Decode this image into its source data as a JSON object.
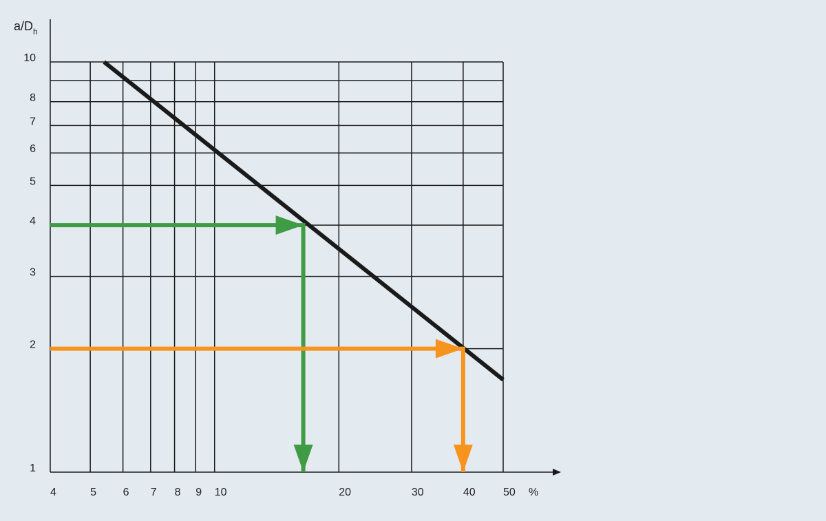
{
  "chart_data": {
    "type": "line",
    "ylabel": {
      "text": "a/D",
      "sub": "h"
    },
    "xunit": "%",
    "xscale": "log",
    "yscale": "log",
    "xlim": [
      4,
      50
    ],
    "ylim": [
      1,
      10
    ],
    "xticks": [
      4,
      5,
      6,
      7,
      8,
      9,
      10,
      20,
      30,
      40,
      50
    ],
    "yticks": [
      1,
      2,
      3,
      4,
      5,
      6,
      7,
      8,
      10
    ],
    "yminor": [
      9
    ],
    "grid": true,
    "series": [
      {
        "color": "#1a1a1a",
        "x": [
          5.4,
          50
        ],
        "values": [
          10,
          1.68
        ],
        "arrow": false
      },
      {
        "color": "#3f9c44",
        "x": [
          4,
          16.4,
          16.4
        ],
        "values": [
          4,
          4,
          1
        ],
        "arrow": true
      },
      {
        "color": "#f7941d",
        "x": [
          4,
          40,
          40
        ],
        "values": [
          2,
          2,
          1
        ],
        "arrow": true
      }
    ]
  }
}
